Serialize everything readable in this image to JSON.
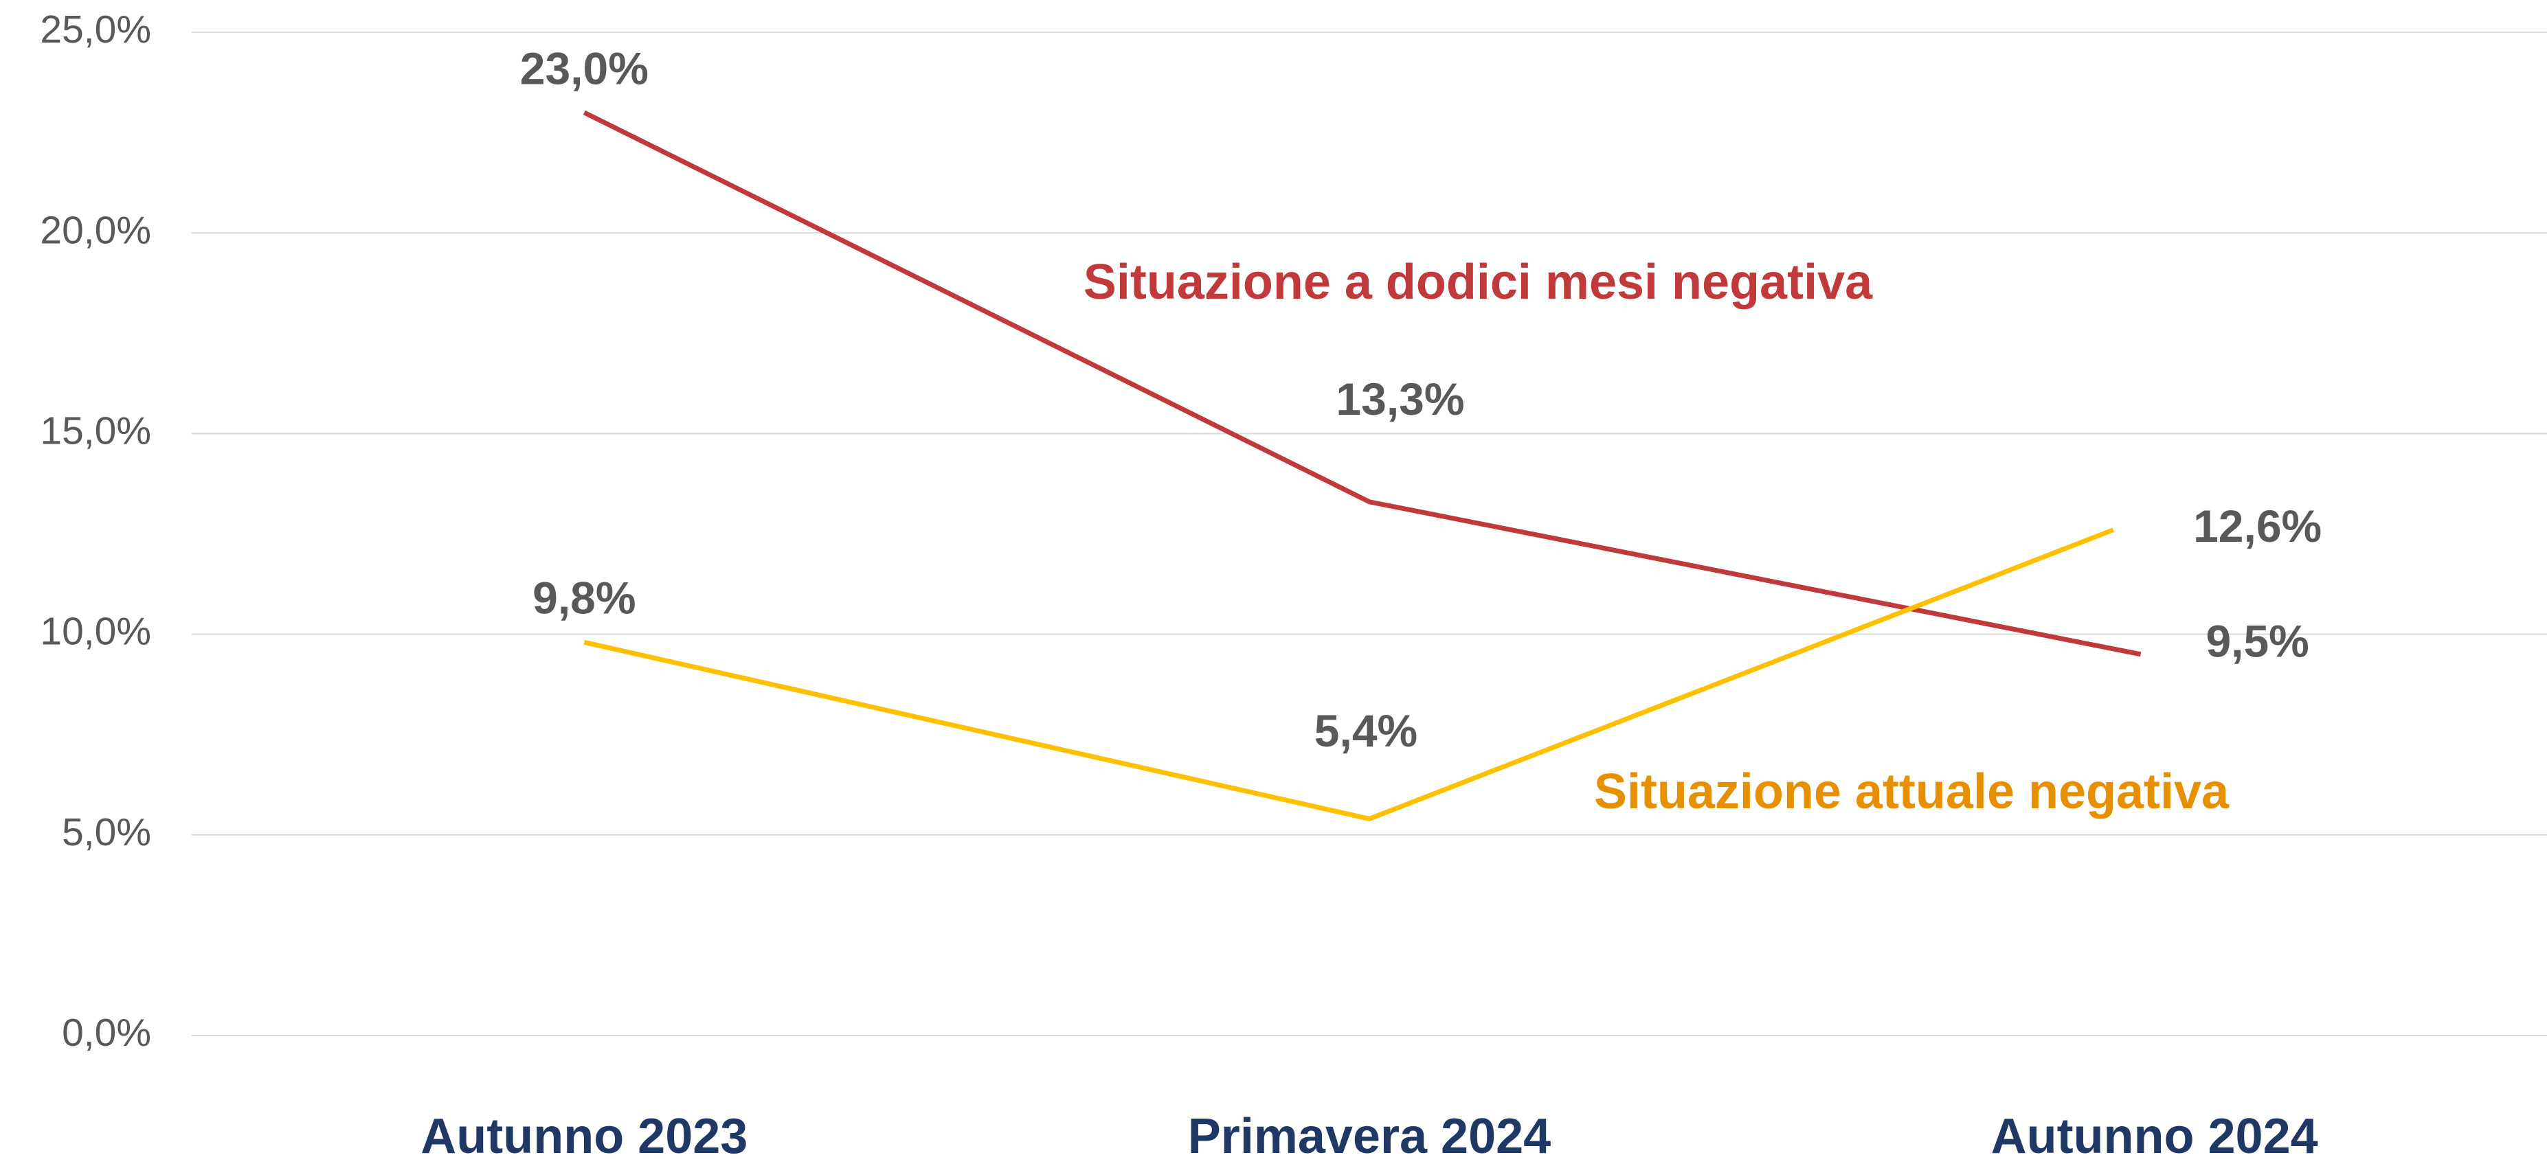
{
  "chart_data": {
    "type": "line",
    "categories": [
      "Autunno 2023",
      "Primavera 2024",
      "Autunno 2024"
    ],
    "series": [
      {
        "name": "Situazione a dodici mesi negativa",
        "color": "#c0393b",
        "label_color": "#c0393b",
        "values": [
          23.0,
          13.3,
          9.5
        ],
        "value_labels": [
          "23,0%",
          "13,3%",
          "9,5%"
        ]
      },
      {
        "name": "Situazione attuale negativa",
        "color": "#ffc000",
        "label_color": "#e69000",
        "values": [
          9.8,
          5.4,
          12.6
        ],
        "value_labels": [
          "9,8%",
          "5,4%",
          "12,6%"
        ]
      }
    ],
    "ylim": [
      0,
      25
    ],
    "yticks": [
      {
        "value": 0,
        "label": "0,0%"
      },
      {
        "value": 5,
        "label": "5,0%"
      },
      {
        "value": 10,
        "label": "10,0%"
      },
      {
        "value": 15,
        "label": "15,0%"
      },
      {
        "value": 20,
        "label": "20,0%"
      },
      {
        "value": 25,
        "label": "25,0%"
      }
    ],
    "grid": true
  }
}
